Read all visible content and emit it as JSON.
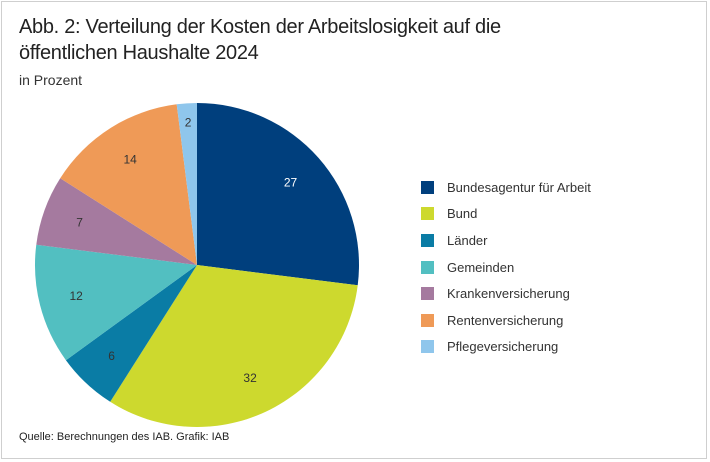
{
  "chart_data": {
    "type": "pie",
    "title": "Abb. 2: Verteilung der Kosten der Arbeitslosigkeit auf die öffentlichen Haushalte 2024",
    "subtitle": "in Prozent",
    "source": "Quelle: Berechnungen des IAB. Grafik: IAB",
    "start_angle": "12 o'clock, clockwise",
    "legend_placement": "right",
    "slices": [
      {
        "label": "Bundesagentur für Arbeit",
        "value": 27,
        "color": "#003f7d"
      },
      {
        "label": "Bund",
        "value": 32,
        "color": "#cdd92e"
      },
      {
        "label": "Länder",
        "value": 6,
        "color": "#0a7ca5"
      },
      {
        "label": "Gemeinden",
        "value": 12,
        "color": "#52bfc1"
      },
      {
        "label": "Krankenversicherung",
        "value": 7,
        "color": "#a57a9f"
      },
      {
        "label": "Rentenversicherung",
        "value": 14,
        "color": "#ef9a57"
      },
      {
        "label": "Pflegeversicherung",
        "value": 2,
        "color": "#8fc6ec"
      }
    ]
  }
}
